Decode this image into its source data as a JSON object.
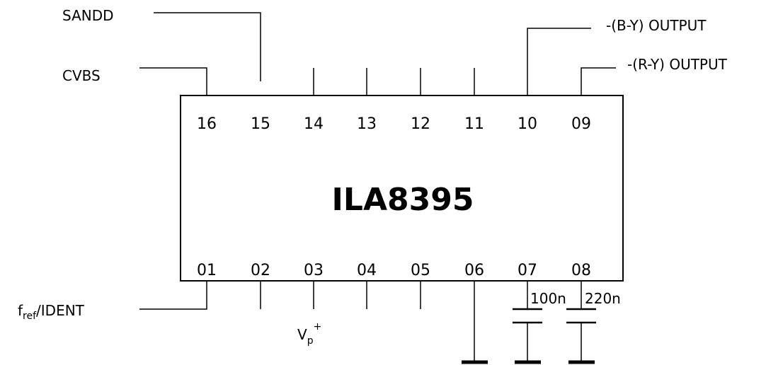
{
  "chip": {
    "name": "ILA8395",
    "top_pins": [
      "16",
      "15",
      "14",
      "13",
      "12",
      "11",
      "10",
      "09"
    ],
    "bottom_pins": [
      "01",
      "02",
      "03",
      "04",
      "05",
      "06",
      "07",
      "08"
    ]
  },
  "labels": {
    "sandd": "SANDD",
    "cvbs": "CVBS",
    "by_output": "-(B-Y) OUTPUT",
    "ry_output": "-(R-Y) OUTPUT",
    "fref_main": "f",
    "fref_sub": "ref",
    "fref_rest": "/IDENT",
    "vp_main": "V",
    "vp_sub": "p",
    "vp_sup": "+",
    "cap_100n": "100n",
    "cap_220n": "220n"
  }
}
